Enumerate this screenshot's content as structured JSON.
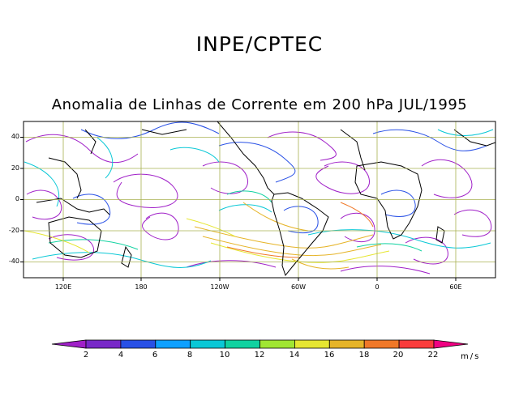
{
  "title": "INPE/CPTEC",
  "subtitle": "Anomalia de Linhas de Corrente em 200 hPa JUL/1995",
  "lat_labels": [
    "40",
    "20",
    "0",
    "-20",
    "-40"
  ],
  "lon_labels": [
    "120E",
    "180",
    "120W",
    "60W",
    "0",
    "60E"
  ],
  "colorbar": {
    "labels": [
      "2",
      "4",
      "6",
      "8",
      "10",
      "12",
      "14",
      "16",
      "18",
      "20",
      "22"
    ],
    "colors": [
      "#a020c8",
      "#7828c8",
      "#2850e6",
      "#0ea0ff",
      "#0ac8d6",
      "#10d2a0",
      "#a0e632",
      "#e6e632",
      "#e6b428",
      "#f07828",
      "#fa3c3c",
      "#f00082"
    ],
    "unit": "m/s"
  }
}
